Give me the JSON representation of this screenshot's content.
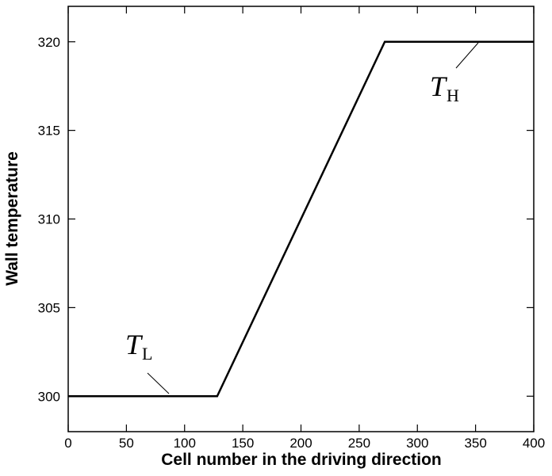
{
  "chart_data": {
    "type": "line",
    "xlabel": "Cell number in the driving direction",
    "ylabel": "Wall temperature",
    "x": [
      0,
      128,
      272,
      400
    ],
    "series": [
      {
        "color": "#000000",
        "values": [
          300,
          300,
          320,
          320
        ]
      }
    ],
    "xlim": [
      0,
      400
    ],
    "xticks": [
      0,
      50,
      100,
      150,
      200,
      250,
      300,
      350,
      400
    ],
    "ylim": [
      298,
      322
    ],
    "yticks": [
      300,
      305,
      310,
      315,
      320
    ],
    "annotations": [
      {
        "text": "T",
        "subscript": "L"
      },
      {
        "text": "T",
        "subscript": "H"
      }
    ]
  }
}
